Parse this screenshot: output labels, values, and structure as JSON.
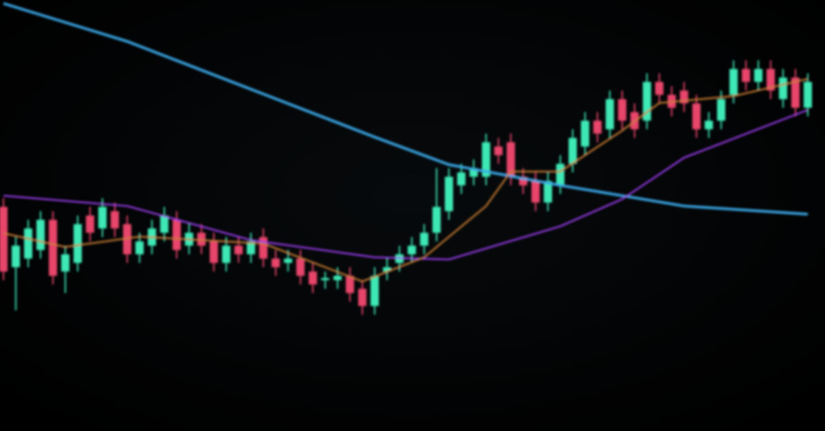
{
  "chart_data": {
    "type": "candlestick",
    "ylim": [
      0,
      100
    ],
    "up_color": "#3ee8b5",
    "down_color": "#e8456a",
    "open": [
      52,
      38,
      40,
      42,
      49,
      37,
      39,
      50,
      47,
      51,
      48,
      41,
      43,
      46,
      49,
      43,
      46,
      44,
      39,
      43,
      41,
      45,
      40,
      39,
      40,
      37,
      35,
      35,
      36,
      33,
      29,
      37,
      39,
      41,
      43,
      46,
      51,
      57,
      59,
      59,
      66,
      67,
      59,
      58,
      53,
      57,
      62,
      66,
      72,
      70,
      77,
      74,
      72,
      81,
      78,
      79,
      76,
      70,
      72,
      78,
      84,
      81,
      84,
      77,
      82,
      75
    ],
    "close": [
      37,
      43,
      47,
      49,
      36,
      41,
      48,
      46,
      52,
      47,
      41,
      44,
      47,
      50,
      42,
      46,
      43,
      39,
      43,
      41,
      44,
      40,
      38,
      40,
      36,
      34,
      35.5,
      36,
      32,
      29,
      36,
      38,
      41,
      43,
      46,
      52,
      59,
      60,
      61,
      67,
      64,
      59,
      57,
      53,
      58,
      62,
      68,
      72,
      69,
      77,
      72,
      70,
      81,
      78,
      75,
      76,
      70,
      72,
      77,
      84,
      81,
      84,
      79,
      82,
      75,
      81
    ],
    "high": [
      54,
      45,
      49,
      51,
      51,
      43,
      50,
      52,
      54,
      53,
      50,
      46,
      49,
      52,
      51,
      48,
      48,
      46,
      45,
      45,
      46,
      47,
      42,
      42,
      42,
      39,
      37,
      38,
      38,
      35,
      38,
      40,
      43,
      45,
      48,
      61,
      61,
      62,
      63,
      69,
      68,
      69,
      61,
      60,
      60,
      64,
      70,
      74,
      74,
      79,
      79,
      76,
      83,
      83,
      80,
      81,
      78,
      74,
      79,
      86,
      86,
      86,
      86,
      84,
      84,
      83
    ],
    "low": [
      35,
      28,
      38,
      40,
      34,
      32,
      37,
      44,
      45,
      45,
      39,
      39,
      41,
      44,
      40,
      41,
      41,
      37,
      37,
      39,
      39,
      38,
      36,
      37,
      34,
      32,
      33,
      33,
      30,
      27,
      27,
      35,
      37,
      39,
      41,
      44,
      49,
      55,
      57,
      57,
      62,
      57,
      55,
      51,
      51,
      55,
      60,
      64,
      67,
      68,
      70,
      68,
      70,
      76,
      73,
      74,
      68,
      68,
      70,
      76,
      79,
      79,
      77,
      75,
      73,
      73
    ],
    "lines": [
      {
        "color": "#3aa8e8",
        "x": [
          0,
          10,
          20,
          30,
          36,
          45,
          55,
          65
        ],
        "values": [
          99.2,
          90.4,
          79.3,
          68.2,
          61.8,
          57.0,
          52.2,
          50.3
        ]
      },
      {
        "color": "#9b3cf0",
        "x": [
          0,
          10,
          20,
          30,
          36,
          45,
          50,
          55,
          65
        ],
        "values": [
          54.6,
          52.2,
          44.3,
          40.3,
          39.8,
          47.5,
          53.8,
          63.4,
          74.5
        ]
      },
      {
        "color": "#c87a30",
        "x": [
          0,
          5,
          11,
          21,
          29,
          34,
          39,
          41,
          45,
          50,
          53,
          59,
          65
        ],
        "values": [
          45.9,
          42.7,
          45.1,
          43.5,
          34.7,
          40.3,
          52.2,
          60.2,
          60.2,
          69.7,
          76.1,
          77.7,
          81.7
        ]
      }
    ]
  }
}
